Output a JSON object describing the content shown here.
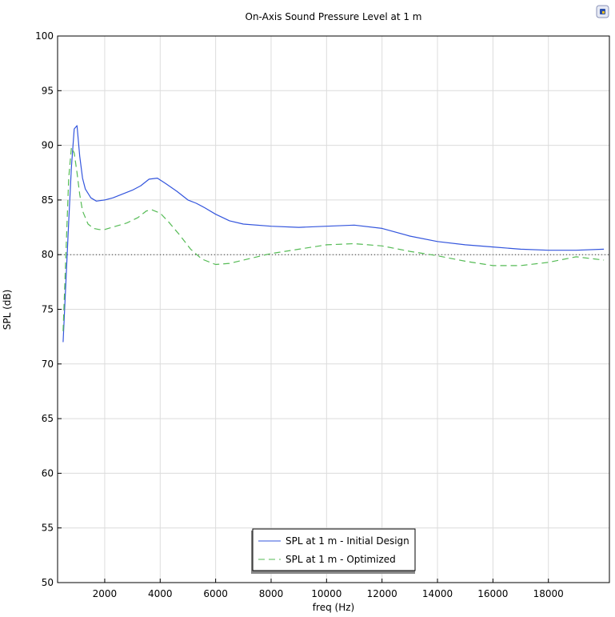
{
  "chart_data": {
    "type": "line",
    "title": "On-Axis Sound Pressure Level at 1 m",
    "xlabel": "freq (Hz)",
    "ylabel": "SPL (dB)",
    "xlim": [
      300,
      20200
    ],
    "ylim": [
      50,
      100
    ],
    "xticks": [
      2000,
      4000,
      6000,
      8000,
      10000,
      12000,
      14000,
      16000,
      18000
    ],
    "yticks": [
      50,
      55,
      60,
      65,
      70,
      75,
      80,
      85,
      90,
      95,
      100
    ],
    "grid": true,
    "legend_position": "bottom-center",
    "reference_line": {
      "y": 80,
      "style": "dotted",
      "color": "#333333"
    },
    "series": [
      {
        "name": "SPL at 1 m - Initial Design",
        "color": "#3355dd",
        "dash": "solid",
        "x": [
          500,
          600,
          700,
          800,
          900,
          1000,
          1100,
          1200,
          1300,
          1500,
          1700,
          2000,
          2300,
          2600,
          3000,
          3300,
          3600,
          3900,
          4200,
          4600,
          5000,
          5300,
          5600,
          6000,
          6500,
          7000,
          8000,
          9000,
          10000,
          11000,
          12000,
          13000,
          14000,
          15000,
          16000,
          17000,
          18000,
          19000,
          20000
        ],
        "y": [
          72.0,
          77.5,
          83.0,
          88.0,
          91.5,
          91.8,
          89.0,
          87.0,
          86.0,
          85.2,
          84.9,
          85.0,
          85.2,
          85.5,
          85.9,
          86.3,
          86.9,
          87.0,
          86.5,
          85.8,
          85.0,
          84.7,
          84.3,
          83.7,
          83.1,
          82.8,
          82.6,
          82.5,
          82.6,
          82.7,
          82.4,
          81.7,
          81.2,
          80.9,
          80.7,
          80.5,
          80.4,
          80.4,
          80.5
        ]
      },
      {
        "name": "SPL at 1 m - Optimized",
        "color": "#55bb55",
        "dash": "dashed",
        "x": [
          500,
          600,
          700,
          800,
          900,
          1000,
          1100,
          1200,
          1400,
          1600,
          1800,
          2000,
          2400,
          2800,
          3200,
          3500,
          3700,
          4000,
          4300,
          4700,
          5100,
          5500,
          6000,
          6500,
          7000,
          8000,
          9000,
          10000,
          11000,
          12000,
          13000,
          14000,
          15000,
          16000,
          17000,
          18000,
          19000,
          20000
        ],
        "y": [
          73.0,
          80.0,
          87.0,
          89.8,
          89.3,
          87.5,
          85.5,
          84.0,
          82.8,
          82.4,
          82.3,
          82.3,
          82.6,
          82.9,
          83.4,
          84.0,
          84.1,
          83.8,
          83.0,
          81.8,
          80.5,
          79.6,
          79.1,
          79.2,
          79.5,
          80.1,
          80.5,
          80.9,
          81.0,
          80.8,
          80.3,
          79.9,
          79.4,
          79.0,
          79.0,
          79.3,
          79.8,
          79.5
        ]
      }
    ]
  }
}
